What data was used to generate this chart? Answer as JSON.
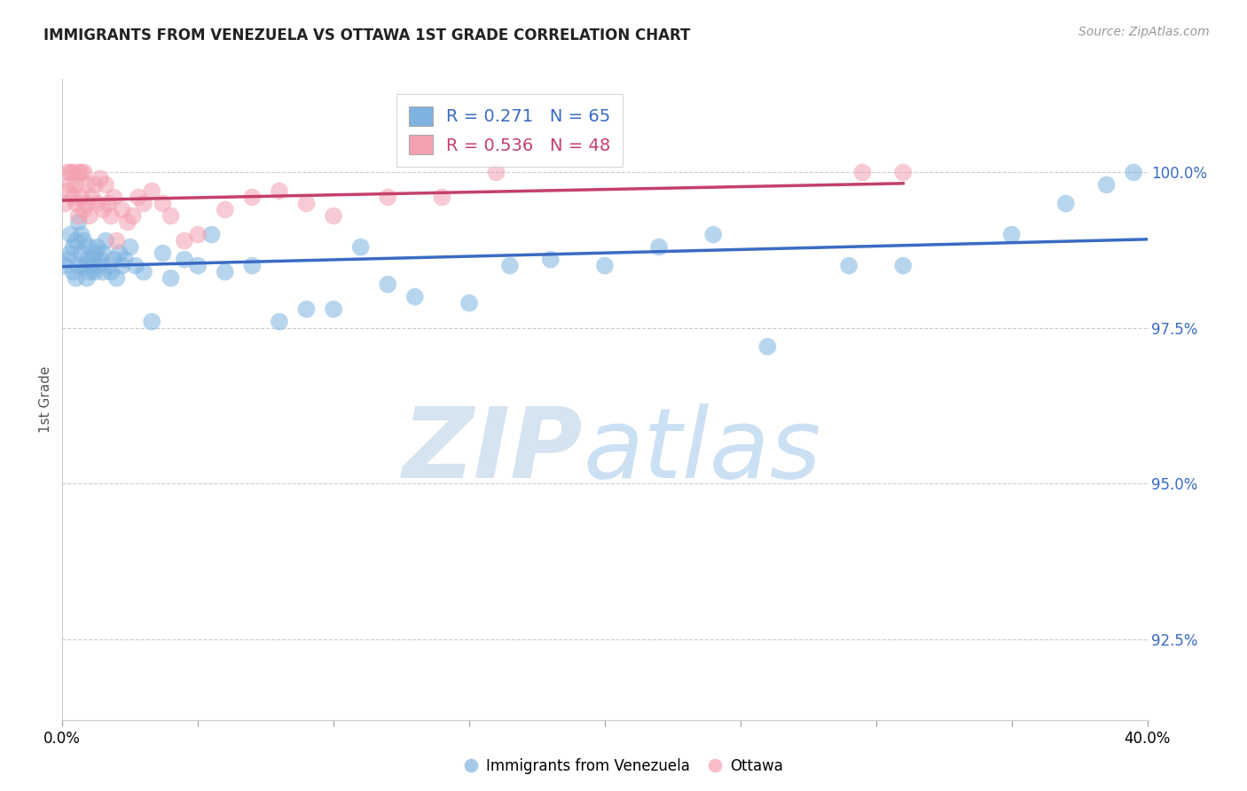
{
  "title": "IMMIGRANTS FROM VENEZUELA VS OTTAWA 1ST GRADE CORRELATION CHART",
  "source": "Source: ZipAtlas.com",
  "ylabel": "1st Grade",
  "yticks": [
    92.5,
    95.0,
    97.5,
    100.0
  ],
  "ytick_labels": [
    "92.5%",
    "95.0%",
    "97.5%",
    "100.0%"
  ],
  "xlim": [
    0.0,
    0.4
  ],
  "ylim": [
    91.2,
    101.5
  ],
  "blue_R": 0.271,
  "blue_N": 65,
  "pink_R": 0.536,
  "pink_N": 48,
  "blue_color": "#7EB3E0",
  "pink_color": "#F4A0B0",
  "blue_line_color": "#3A6BC4",
  "pink_line_color": "#C4406A",
  "legend_label_blue": "Immigrants from Venezuela",
  "legend_label_pink": "Ottawa",
  "blue_scatter_x": [
    0.001,
    0.002,
    0.003,
    0.003,
    0.004,
    0.004,
    0.005,
    0.005,
    0.006,
    0.006,
    0.007,
    0.007,
    0.008,
    0.008,
    0.009,
    0.009,
    0.01,
    0.01,
    0.011,
    0.011,
    0.012,
    0.012,
    0.013,
    0.013,
    0.014,
    0.015,
    0.015,
    0.016,
    0.017,
    0.018,
    0.019,
    0.02,
    0.021,
    0.022,
    0.023,
    0.025,
    0.027,
    0.03,
    0.033,
    0.037,
    0.04,
    0.045,
    0.05,
    0.055,
    0.06,
    0.07,
    0.08,
    0.09,
    0.1,
    0.11,
    0.12,
    0.13,
    0.15,
    0.165,
    0.18,
    0.2,
    0.22,
    0.24,
    0.26,
    0.29,
    0.31,
    0.35,
    0.37,
    0.385,
    0.395
  ],
  "blue_scatter_y": [
    98.5,
    98.6,
    98.7,
    99.0,
    98.4,
    98.8,
    98.3,
    98.9,
    98.5,
    99.2,
    98.7,
    99.0,
    98.5,
    98.9,
    98.3,
    98.6,
    98.8,
    98.4,
    98.6,
    98.5,
    98.4,
    98.7,
    98.5,
    98.8,
    98.6,
    98.4,
    98.7,
    98.9,
    98.5,
    98.4,
    98.6,
    98.3,
    98.7,
    98.5,
    98.6,
    98.8,
    98.5,
    98.4,
    97.6,
    98.7,
    98.3,
    98.6,
    98.5,
    99.0,
    98.4,
    98.5,
    97.6,
    97.8,
    97.8,
    98.8,
    98.2,
    98.0,
    97.9,
    98.5,
    98.6,
    98.5,
    98.8,
    99.0,
    97.2,
    98.5,
    98.5,
    99.0,
    99.5,
    99.8,
    100.0
  ],
  "pink_scatter_x": [
    0.001,
    0.002,
    0.002,
    0.003,
    0.003,
    0.004,
    0.004,
    0.005,
    0.005,
    0.006,
    0.006,
    0.007,
    0.007,
    0.008,
    0.008,
    0.009,
    0.009,
    0.01,
    0.011,
    0.012,
    0.013,
    0.014,
    0.015,
    0.016,
    0.017,
    0.018,
    0.019,
    0.02,
    0.022,
    0.024,
    0.026,
    0.028,
    0.03,
    0.033,
    0.037,
    0.04,
    0.045,
    0.05,
    0.06,
    0.07,
    0.08,
    0.09,
    0.1,
    0.12,
    0.14,
    0.16,
    0.295,
    0.31
  ],
  "pink_scatter_y": [
    99.5,
    99.7,
    100.0,
    99.8,
    100.0,
    99.6,
    100.0,
    99.5,
    99.8,
    99.3,
    100.0,
    99.6,
    100.0,
    99.4,
    100.0,
    99.8,
    99.5,
    99.3,
    99.6,
    99.8,
    99.5,
    99.9,
    99.4,
    99.8,
    99.5,
    99.3,
    99.6,
    98.9,
    99.4,
    99.2,
    99.3,
    99.6,
    99.5,
    99.7,
    99.5,
    99.3,
    98.9,
    99.0,
    99.4,
    99.6,
    99.7,
    99.5,
    99.3,
    99.6,
    99.6,
    100.0,
    100.0,
    100.0
  ]
}
